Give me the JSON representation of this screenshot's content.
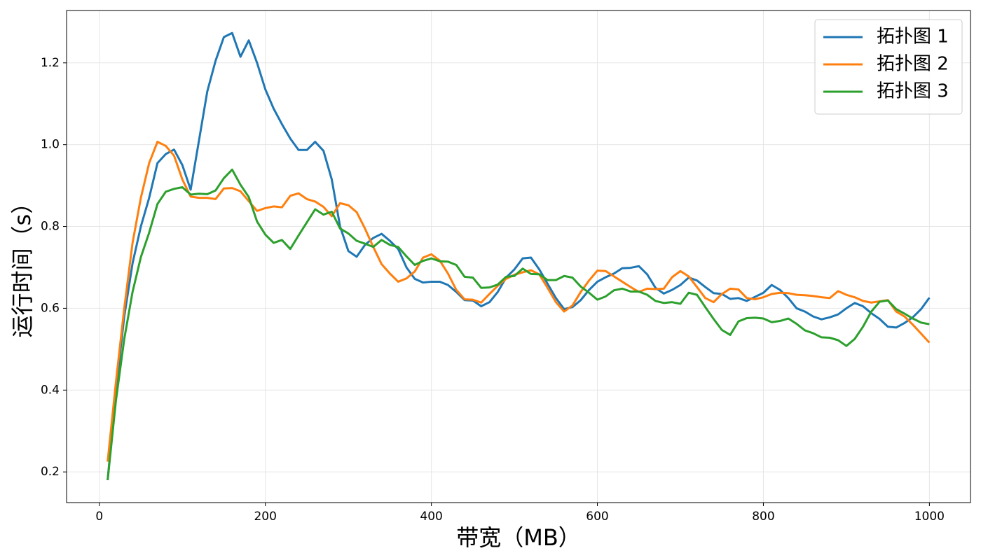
{
  "chart_data": {
    "type": "line",
    "xlabel": "带宽（MB）",
    "ylabel": "运行时间（s）",
    "x": [
      10,
      20,
      30,
      40,
      50,
      60,
      70,
      80,
      90,
      100,
      110,
      120,
      130,
      140,
      150,
      160,
      170,
      180,
      190,
      200,
      210,
      220,
      230,
      240,
      250,
      260,
      270,
      280,
      290,
      300,
      310,
      320,
      330,
      340,
      350,
      360,
      370,
      380,
      390,
      400,
      410,
      420,
      430,
      440,
      450,
      460,
      470,
      480,
      490,
      500,
      510,
      520,
      530,
      540,
      550,
      560,
      570,
      580,
      590,
      600,
      610,
      620,
      630,
      640,
      650,
      660,
      670,
      680,
      690,
      700,
      710,
      720,
      730,
      740,
      750,
      760,
      770,
      780,
      790,
      800,
      810,
      820,
      830,
      840,
      850,
      860,
      870,
      880,
      890,
      900,
      910,
      920,
      930,
      940,
      950,
      960,
      970,
      980,
      990,
      1000
    ],
    "series": [
      {
        "name": "拓扑图 1",
        "color": "#1f77b4",
        "values": [
          0.18,
          0.4,
          0.58,
          0.71,
          0.8,
          0.87,
          0.955,
          0.977,
          0.988,
          0.95,
          0.89,
          1.01,
          1.13,
          1.205,
          1.263,
          1.273,
          1.215,
          1.255,
          1.2,
          1.135,
          1.088,
          1.05,
          1.015,
          0.987,
          0.987,
          1.007,
          0.985,
          0.915,
          0.8,
          0.74,
          0.726,
          0.755,
          0.772,
          0.782,
          0.765,
          0.745,
          0.7,
          0.672,
          0.663,
          0.665,
          0.665,
          0.657,
          0.64,
          0.62,
          0.619,
          0.605,
          0.615,
          0.64,
          0.675,
          0.695,
          0.722,
          0.724,
          0.695,
          0.66,
          0.625,
          0.598,
          0.603,
          0.62,
          0.645,
          0.665,
          0.676,
          0.685,
          0.698,
          0.699,
          0.703,
          0.683,
          0.65,
          0.636,
          0.645,
          0.657,
          0.675,
          0.668,
          0.652,
          0.637,
          0.635,
          0.623,
          0.625,
          0.618,
          0.628,
          0.638,
          0.657,
          0.645,
          0.625,
          0.6,
          0.592,
          0.58,
          0.573,
          0.578,
          0.585,
          0.6,
          0.613,
          0.605,
          0.588,
          0.574,
          0.555,
          0.553,
          0.564,
          0.578,
          0.598,
          0.626
        ]
      },
      {
        "name": "拓扑图 2",
        "color": "#ff7f0e",
        "values": [
          0.225,
          0.42,
          0.6,
          0.76,
          0.87,
          0.955,
          1.007,
          0.997,
          0.973,
          0.915,
          0.873,
          0.87,
          0.87,
          0.867,
          0.893,
          0.894,
          0.886,
          0.862,
          0.838,
          0.845,
          0.849,
          0.847,
          0.875,
          0.881,
          0.867,
          0.861,
          0.848,
          0.825,
          0.857,
          0.852,
          0.835,
          0.795,
          0.75,
          0.708,
          0.685,
          0.665,
          0.673,
          0.69,
          0.724,
          0.732,
          0.717,
          0.685,
          0.645,
          0.622,
          0.621,
          0.614,
          0.635,
          0.655,
          0.672,
          0.682,
          0.688,
          0.693,
          0.683,
          0.65,
          0.615,
          0.592,
          0.607,
          0.64,
          0.668,
          0.692,
          0.691,
          0.678,
          0.665,
          0.652,
          0.64,
          0.648,
          0.647,
          0.648,
          0.676,
          0.691,
          0.678,
          0.652,
          0.625,
          0.615,
          0.635,
          0.648,
          0.646,
          0.625,
          0.622,
          0.627,
          0.635,
          0.638,
          0.637,
          0.633,
          0.632,
          0.63,
          0.627,
          0.625,
          0.642,
          0.633,
          0.627,
          0.618,
          0.614,
          0.617,
          0.62,
          0.592,
          0.58,
          0.56,
          0.538,
          0.516
        ]
      },
      {
        "name": "拓扑图 3",
        "color": "#2ca02c",
        "values": [
          0.18,
          0.375,
          0.525,
          0.64,
          0.725,
          0.785,
          0.855,
          0.885,
          0.892,
          0.896,
          0.878,
          0.88,
          0.879,
          0.888,
          0.918,
          0.939,
          0.902,
          0.872,
          0.812,
          0.78,
          0.76,
          0.767,
          0.745,
          0.778,
          0.81,
          0.842,
          0.829,
          0.836,
          0.795,
          0.783,
          0.765,
          0.758,
          0.75,
          0.767,
          0.755,
          0.75,
          0.727,
          0.706,
          0.716,
          0.722,
          0.715,
          0.714,
          0.706,
          0.677,
          0.675,
          0.65,
          0.651,
          0.658,
          0.677,
          0.679,
          0.697,
          0.684,
          0.683,
          0.669,
          0.669,
          0.679,
          0.675,
          0.653,
          0.638,
          0.621,
          0.629,
          0.644,
          0.648,
          0.641,
          0.641,
          0.633,
          0.618,
          0.613,
          0.615,
          0.611,
          0.638,
          0.633,
          0.603,
          0.574,
          0.547,
          0.535,
          0.568,
          0.576,
          0.577,
          0.575,
          0.566,
          0.569,
          0.575,
          0.562,
          0.546,
          0.539,
          0.529,
          0.528,
          0.522,
          0.508,
          0.525,
          0.555,
          0.592,
          0.616,
          0.619,
          0.598,
          0.587,
          0.575,
          0.565,
          0.561
        ]
      }
    ],
    "xlim": [
      -39.5,
      1049.5
    ],
    "xticks": [
      0,
      200,
      400,
      600,
      800,
      1000
    ],
    "ylim": [
      0.125,
      1.328
    ],
    "yticks": [
      0.2,
      0.4,
      0.6,
      0.8,
      {
        "value": 1,
        "label": "1.0"
      },
      1.2
    ],
    "grid": true,
    "legend": "upper right"
  }
}
